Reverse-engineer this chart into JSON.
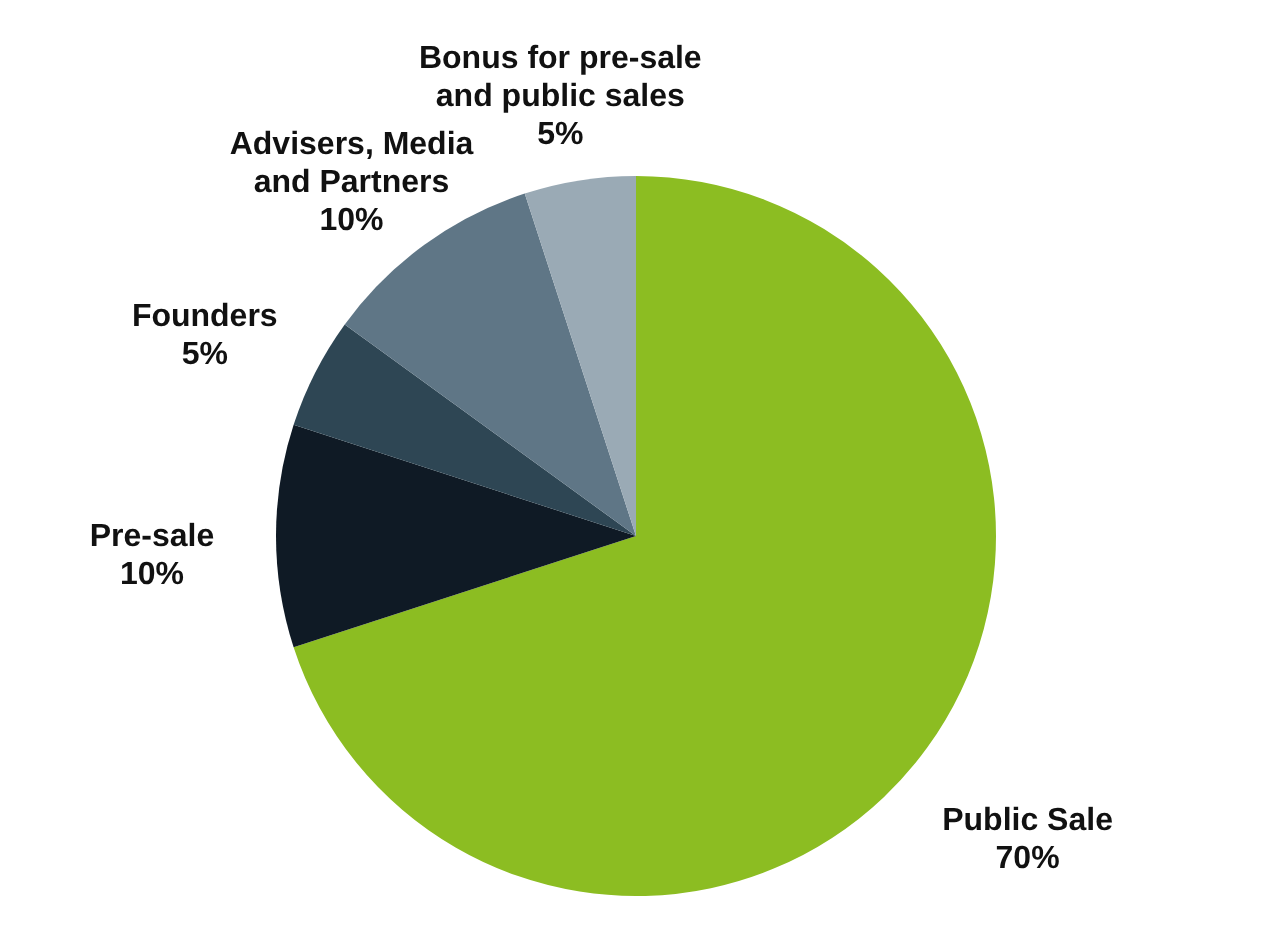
{
  "chart_data": {
    "type": "pie",
    "categories": [
      "Public Sale",
      "Pre-sale",
      "Founders",
      "Advisers, Media and Partners",
      "Bonus for pre-sale and public sales"
    ],
    "values": [
      70,
      10,
      5,
      10,
      5
    ],
    "value_labels": [
      "70%",
      "10%",
      "5%",
      "10%",
      "5%"
    ],
    "colors": [
      "#8cbd22",
      "#0f1a25",
      "#2e4654",
      "#5f7686",
      "#9aaab5"
    ]
  }
}
